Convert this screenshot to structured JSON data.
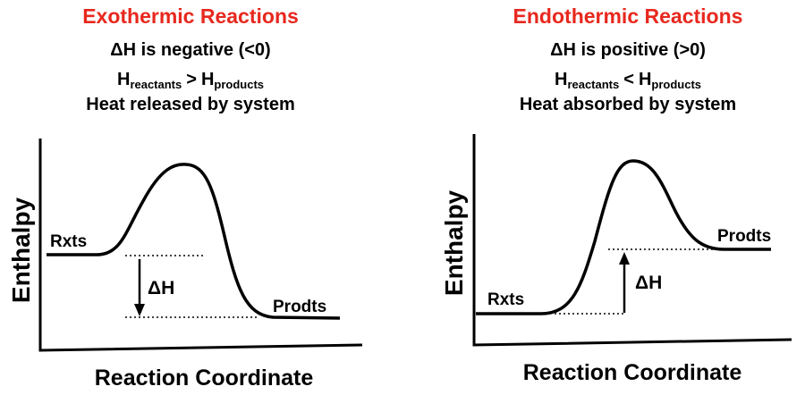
{
  "panels": [
    {
      "title": "Exothermic Reactions",
      "sign": "ΔH is negative (<0)",
      "relation": {
        "h1": "H",
        "sub1": "reactants",
        "op": ">",
        "h2": "H",
        "sub2": "products"
      },
      "heat": "Heat released by system",
      "y_label": "Enthalpy",
      "x_label": "Reaction Coordinate",
      "reactants": "Rxts",
      "products": "Prodts",
      "delta": "ΔH"
    },
    {
      "title": "Endothermic Reactions",
      "sign": "ΔH is positive (>0)",
      "relation": {
        "h1": "H",
        "sub1": "reactants",
        "op": "<",
        "h2": "H",
        "sub2": "products"
      },
      "heat": "Heat absorbed by system",
      "y_label": "Enthalpy",
      "x_label": "Reaction Coordinate",
      "reactants": "Rxts",
      "products": "Prodts",
      "delta": "ΔH"
    }
  ]
}
